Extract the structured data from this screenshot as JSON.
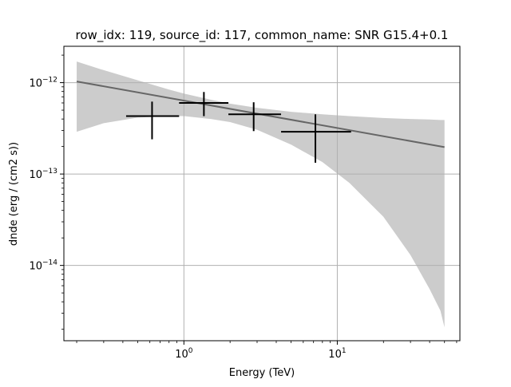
{
  "chart_data": {
    "type": "scatter",
    "title": "row_idx: 119, source_id: 117, common_name: SNR G15.4+0.1",
    "xlabel": "Energy (TeV)",
    "ylabel": "dnde (erg / (cm2 s))",
    "xscale": "log",
    "yscale": "log",
    "xlim": [
      0.165,
      63
    ],
    "ylim": [
      1.5e-15,
      2.5e-12
    ],
    "grid": true,
    "x_ticks": [
      {
        "value": 1,
        "base": "10",
        "exp": "0"
      },
      {
        "value": 10,
        "base": "10",
        "exp": "1"
      }
    ],
    "y_ticks": [
      {
        "value": 1e-14,
        "base": "10",
        "exp": "−14"
      },
      {
        "value": 1e-13,
        "base": "10",
        "exp": "−13"
      },
      {
        "value": 1e-12,
        "base": "10",
        "exp": "−12"
      }
    ],
    "flux_points": [
      {
        "x": 0.62,
        "x_lo": 0.42,
        "x_hi": 0.93,
        "y": 4.3e-13,
        "y_lo": 2.4e-13,
        "y_hi": 6.2e-13
      },
      {
        "x": 1.35,
        "x_lo": 0.93,
        "x_hi": 1.95,
        "y": 6e-13,
        "y_lo": 4.3e-13,
        "y_hi": 7.9e-13
      },
      {
        "x": 2.85,
        "x_lo": 1.95,
        "x_hi": 4.3,
        "y": 4.5e-13,
        "y_lo": 2.95e-13,
        "y_hi": 6.1e-13
      },
      {
        "x": 7.2,
        "x_lo": 4.3,
        "x_hi": 12.3,
        "y": 2.9e-13,
        "y_lo": 1.33e-13,
        "y_hi": 4.5e-13
      }
    ],
    "model_line": {
      "x": [
        0.2,
        50
      ],
      "y": [
        1.03e-12,
        1.97e-13
      ]
    },
    "confidence_band": {
      "x": [
        0.2,
        0.3,
        0.5,
        0.8,
        1.0,
        1.5,
        2.0,
        3.0,
        5.0,
        8.0,
        12.0,
        20.0,
        30.0,
        40.0,
        47.0,
        50.0
      ],
      "upper": [
        1.7e-12,
        1.37e-12,
        1.06e-12,
        8.4e-13,
        7.6e-13,
        6.5e-13,
        5.9e-13,
        5.3e-13,
        4.8e-13,
        4.5e-13,
        4.3e-13,
        4.1e-13,
        4e-13,
        3.95e-13,
        3.9e-13,
        3.9e-13
      ],
      "lower": [
        2.9e-13,
        3.6e-13,
        4.15e-13,
        4.3e-13,
        4.3e-13,
        4e-13,
        3.7e-13,
        3.05e-13,
        2.1e-13,
        1.35e-13,
        8e-14,
        3.4e-14,
        1.3e-14,
        5.5e-15,
        3.2e-15,
        2.1e-15
      ]
    },
    "colors": {
      "points": "#000000",
      "model": "#666666",
      "band": "#cccccc",
      "grid": "#b0b0b0"
    }
  }
}
